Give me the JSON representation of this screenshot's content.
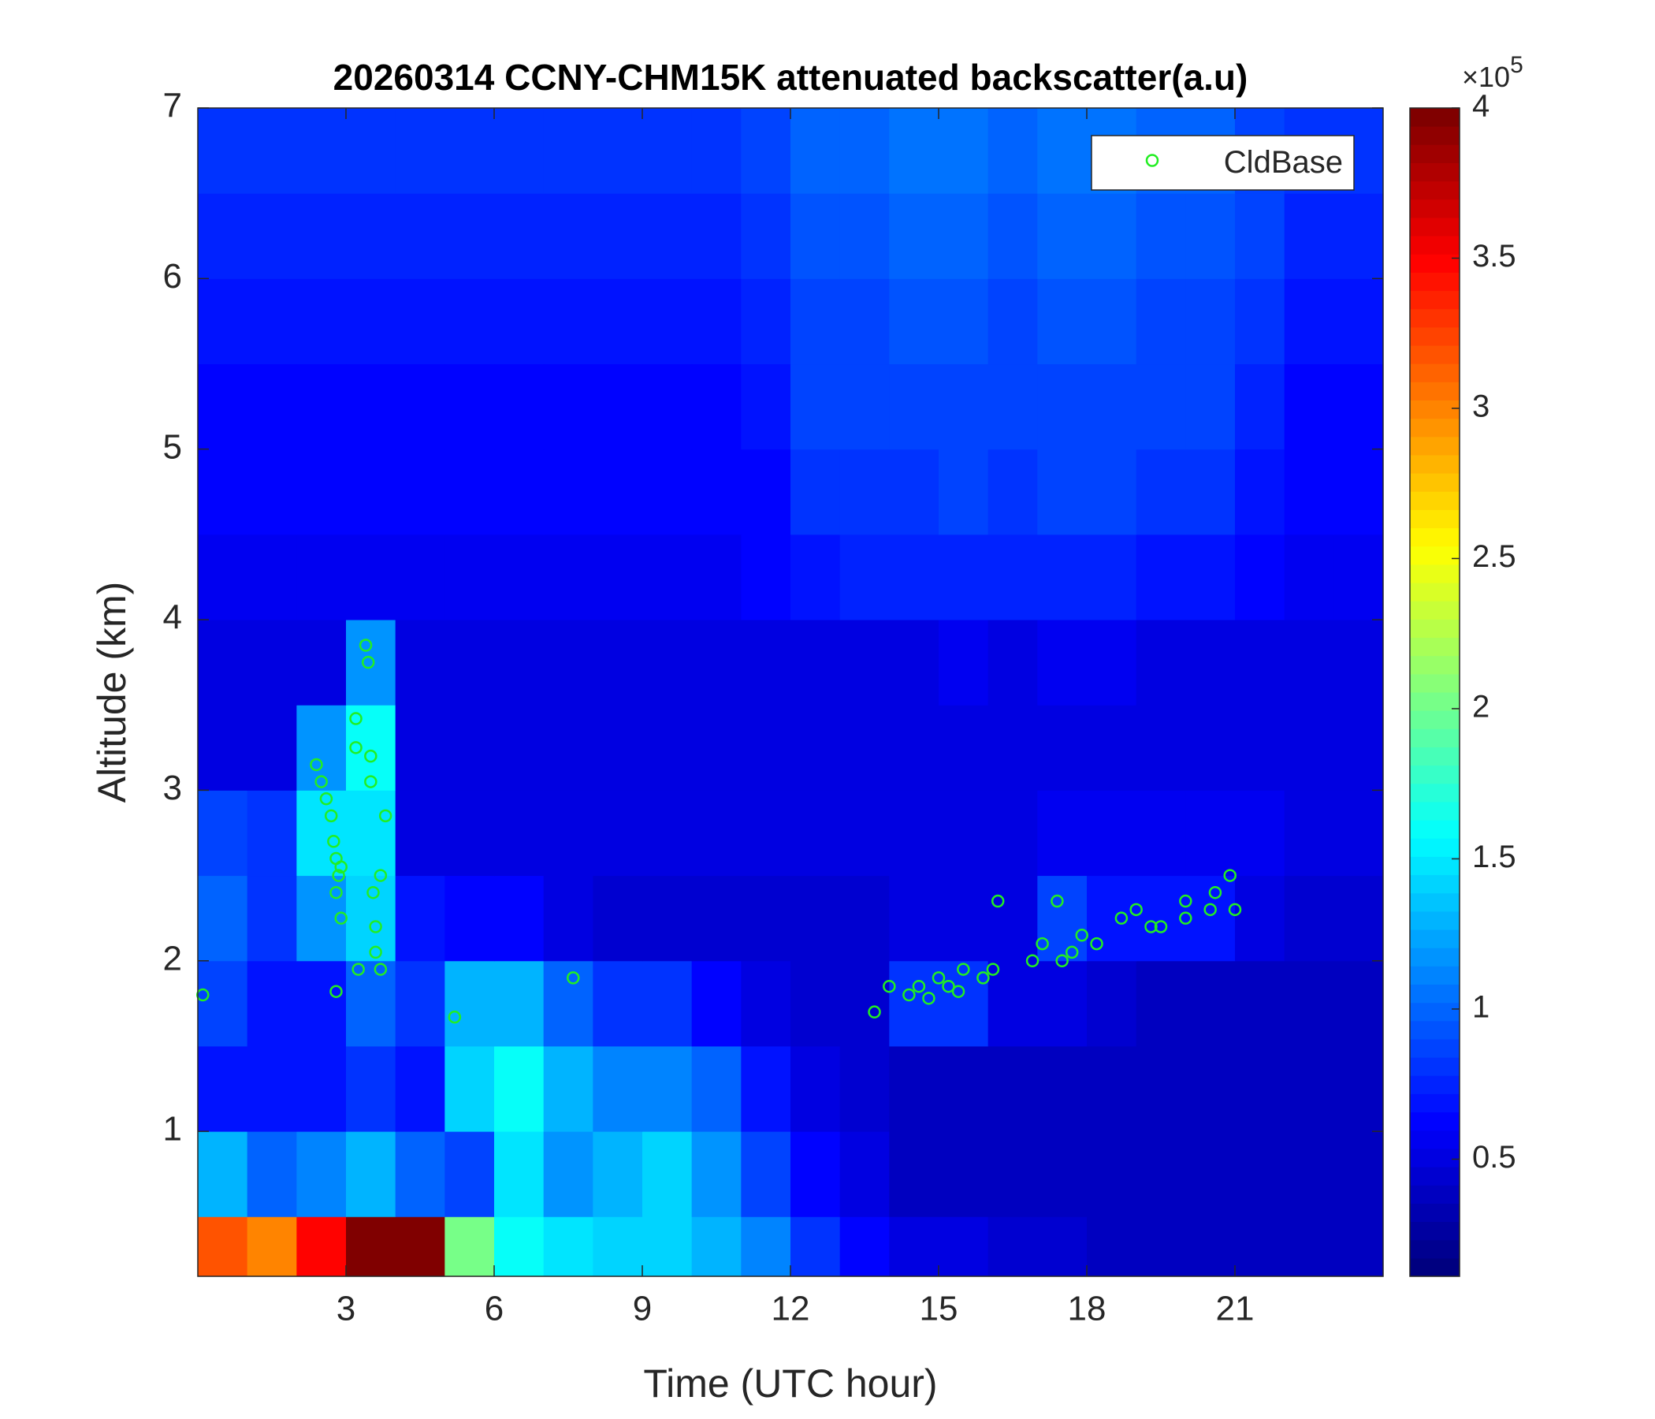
{
  "chart_data": {
    "type": "heatmap",
    "title": "20260314 CCNY-CHM15K attenuated backscatter(a.u)",
    "xlabel": "Time (UTC hour)",
    "ylabel": "Altitude (km)",
    "xlim": [
      0,
      24
    ],
    "xticks": [
      3,
      6,
      9,
      12,
      15,
      18,
      21
    ],
    "ylim": [
      0.15,
      7
    ],
    "yticks": [
      1,
      2,
      3,
      4,
      5,
      6,
      7
    ],
    "colormap": "jet",
    "colorbar": {
      "lim": [
        0.11,
        4
      ],
      "ticks": [
        0.5,
        1,
        1.5,
        2,
        2.5,
        3,
        3.5,
        4
      ],
      "multiplier": "×10",
      "exponent": "5"
    },
    "x_bins": [
      0,
      1,
      2,
      3,
      4,
      5,
      6,
      7,
      8,
      9,
      10,
      11,
      12,
      13,
      14,
      15,
      16,
      17,
      18,
      19,
      20,
      21,
      22,
      23,
      24
    ],
    "y_bins": [
      0.15,
      0.5,
      1,
      1.5,
      2,
      2.5,
      3,
      3.5,
      4,
      4.5,
      5,
      5.5,
      6,
      6.5,
      7
    ],
    "z": [
      [
        3.2,
        3.0,
        3.5,
        4,
        4,
        2.0,
        1.6,
        1.5,
        1.4,
        1.4,
        1.3,
        1.1,
        0.8,
        0.6,
        0.5,
        0.5,
        0.45,
        0.45,
        0.4,
        0.4,
        0.4,
        0.4,
        0.4,
        0.4
      ],
      [
        1.3,
        1.0,
        1.1,
        1.3,
        1.0,
        0.9,
        1.5,
        1.2,
        1.3,
        1.4,
        1.2,
        0.9,
        0.6,
        0.5,
        0.4,
        0.4,
        0.4,
        0.4,
        0.4,
        0.4,
        0.4,
        0.4,
        0.4,
        0.4
      ],
      [
        0.7,
        0.7,
        0.7,
        0.8,
        0.7,
        1.4,
        1.6,
        1.3,
        1.1,
        1.1,
        1.0,
        0.7,
        0.5,
        0.45,
        0.4,
        0.4,
        0.4,
        0.4,
        0.4,
        0.4,
        0.4,
        0.4,
        0.4,
        0.4
      ],
      [
        0.9,
        0.7,
        0.7,
        1.0,
        0.8,
        1.3,
        1.3,
        1.0,
        0.8,
        0.8,
        0.6,
        0.5,
        0.45,
        0.45,
        0.8,
        0.8,
        0.5,
        0.5,
        0.45,
        0.4,
        0.4,
        0.4,
        0.4,
        0.4
      ],
      [
        1.0,
        0.8,
        1.2,
        1.4,
        0.7,
        0.6,
        0.6,
        0.5,
        0.45,
        0.45,
        0.45,
        0.45,
        0.45,
        0.45,
        0.5,
        0.5,
        0.5,
        0.9,
        0.7,
        0.7,
        0.7,
        0.5,
        0.45,
        0.45
      ],
      [
        0.9,
        0.8,
        1.5,
        1.5,
        0.5,
        0.5,
        0.5,
        0.5,
        0.5,
        0.5,
        0.5,
        0.5,
        0.5,
        0.5,
        0.5,
        0.5,
        0.5,
        0.55,
        0.55,
        0.55,
        0.55,
        0.55,
        0.5,
        0.5
      ],
      [
        0.5,
        0.5,
        1.2,
        1.6,
        0.5,
        0.5,
        0.5,
        0.5,
        0.5,
        0.5,
        0.5,
        0.5,
        0.5,
        0.5,
        0.5,
        0.5,
        0.5,
        0.5,
        0.5,
        0.5,
        0.5,
        0.5,
        0.5,
        0.5
      ],
      [
        0.5,
        0.5,
        0.5,
        1.2,
        0.5,
        0.5,
        0.5,
        0.5,
        0.5,
        0.5,
        0.5,
        0.5,
        0.5,
        0.5,
        0.5,
        0.55,
        0.5,
        0.55,
        0.55,
        0.5,
        0.5,
        0.5,
        0.5,
        0.5
      ],
      [
        0.55,
        0.55,
        0.55,
        0.55,
        0.55,
        0.55,
        0.55,
        0.55,
        0.55,
        0.55,
        0.55,
        0.6,
        0.7,
        0.75,
        0.75,
        0.75,
        0.75,
        0.75,
        0.75,
        0.7,
        0.7,
        0.6,
        0.55,
        0.55
      ],
      [
        0.6,
        0.6,
        0.6,
        0.6,
        0.6,
        0.6,
        0.6,
        0.6,
        0.6,
        0.6,
        0.6,
        0.65,
        0.8,
        0.8,
        0.8,
        0.85,
        0.8,
        0.85,
        0.85,
        0.8,
        0.8,
        0.7,
        0.6,
        0.6
      ],
      [
        0.65,
        0.65,
        0.65,
        0.65,
        0.65,
        0.65,
        0.65,
        0.65,
        0.65,
        0.65,
        0.65,
        0.7,
        0.85,
        0.85,
        0.9,
        0.9,
        0.85,
        0.9,
        0.9,
        0.85,
        0.85,
        0.75,
        0.65,
        0.65
      ],
      [
        0.7,
        0.7,
        0.7,
        0.7,
        0.7,
        0.7,
        0.7,
        0.7,
        0.7,
        0.7,
        0.7,
        0.75,
        0.9,
        0.9,
        0.95,
        0.95,
        0.9,
        0.95,
        0.95,
        0.9,
        0.9,
        0.8,
        0.7,
        0.7
      ],
      [
        0.75,
        0.75,
        0.75,
        0.75,
        0.75,
        0.75,
        0.75,
        0.75,
        0.75,
        0.75,
        0.75,
        0.8,
        0.95,
        0.95,
        1.0,
        1.0,
        0.95,
        1.0,
        1.0,
        0.95,
        0.95,
        0.85,
        0.75,
        0.75
      ],
      [
        0.8,
        0.8,
        0.8,
        0.8,
        0.8,
        0.8,
        0.8,
        0.8,
        0.8,
        0.8,
        0.8,
        0.85,
        1.0,
        1.0,
        1.05,
        1.05,
        1.0,
        1.05,
        1.05,
        1.0,
        1.0,
        0.9,
        0.8,
        0.8
      ]
    ],
    "scatter": {
      "name": "CldBase",
      "color": "#22ee22",
      "x": [
        0.1,
        2.4,
        2.5,
        2.6,
        2.7,
        2.75,
        2.8,
        2.85,
        2.9,
        2.8,
        2.8,
        2.9,
        3.2,
        3.2,
        3.25,
        3.4,
        3.45,
        3.5,
        3.5,
        3.55,
        3.6,
        3.6,
        3.7,
        3.7,
        3.8,
        5.2,
        7.6,
        13.7,
        14,
        14.4,
        14.6,
        14.8,
        15,
        15.2,
        15.4,
        15.5,
        15.9,
        16.1,
        16.2,
        16.9,
        17.1,
        17.4,
        17.5,
        17.7,
        17.9,
        18.2,
        18.7,
        19.0,
        19.3,
        19.5,
        20.0,
        20.0,
        20.5,
        20.6,
        20.9,
        21.0
      ],
      "y": [
        1.8,
        3.15,
        3.05,
        2.95,
        2.85,
        2.7,
        2.6,
        2.5,
        2.55,
        2.4,
        1.82,
        2.25,
        3.42,
        3.25,
        1.95,
        3.85,
        3.75,
        3.2,
        3.05,
        2.4,
        2.2,
        2.05,
        1.95,
        2.5,
        2.85,
        1.67,
        1.9,
        1.7,
        1.85,
        1.8,
        1.85,
        1.78,
        1.9,
        1.85,
        1.82,
        1.95,
        1.9,
        1.95,
        2.35,
        2.0,
        2.1,
        2.35,
        2.0,
        2.05,
        2.15,
        2.1,
        2.25,
        2.3,
        2.2,
        2.2,
        2.35,
        2.25,
        2.3,
        2.4,
        2.5,
        2.3
      ]
    },
    "legend": "northeast"
  }
}
